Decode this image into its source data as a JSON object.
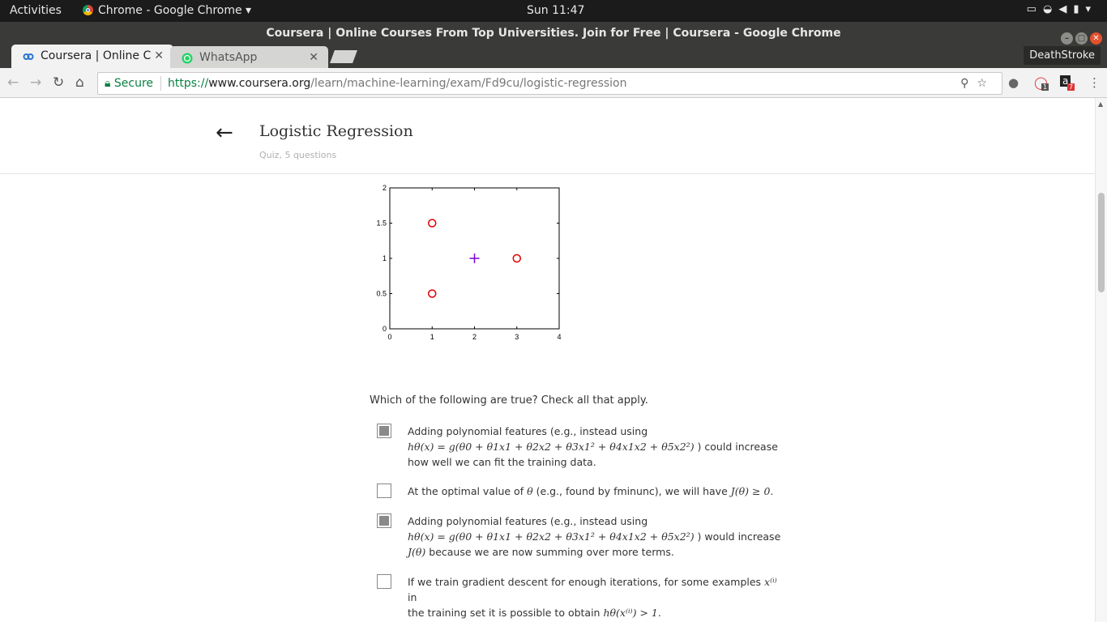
{
  "os": {
    "activities": "Activities",
    "app_name": "Chrome - Google Chrome",
    "clock": "Sun 11:47"
  },
  "window": {
    "title": "Coursera | Online Courses From Top Universities. Join for Free | Coursera - Google Chrome"
  },
  "tabs": [
    {
      "label": "Coursera | Online C",
      "active": true
    },
    {
      "label": "WhatsApp",
      "active": false
    }
  ],
  "profile": "DeathStroke",
  "omnibox": {
    "secure_label": "Secure",
    "url_scheme": "https://",
    "url_host": "www.coursera.org",
    "url_path": "/learn/machine-learning/exam/Fd9cu/logistic-regression"
  },
  "extensions": {
    "badge1": "1",
    "badge2": "7"
  },
  "quiz": {
    "title": "Logistic Regression",
    "subtitle": "Quiz, 5 questions",
    "question": "Which of the following are true? Check all that apply."
  },
  "options": [
    {
      "checked": true,
      "l1": "Adding polynomial features (e.g., instead using",
      "l2_math": "hθ(x) = g(θ0 + θ1x1 + θ2x2 + θ3x1² + θ4x1x2 + θ5x2²)",
      "l2_text": " ) could increase",
      "l3": "how well we can fit the training data."
    },
    {
      "checked": false,
      "l1a": "At the optimal value of ",
      "m1": "θ",
      "l1b": " (e.g., found by fminunc), we will have ",
      "m2": "J(θ) ≥ 0."
    },
    {
      "checked": true,
      "l1": "Adding polynomial features (e.g., instead using",
      "l2_math": "hθ(x) = g(θ0 + θ1x1 + θ2x2 + θ3x1² + θ4x1x2 + θ5x2²)",
      "l2_text": " ) would increase",
      "l3_math": "J(θ)",
      "l3": " because we are now summing over more terms."
    },
    {
      "checked": false,
      "l1a": "If we train gradient descent for enough iterations, for some examples ",
      "m1": "x⁽ⁱ⁾",
      "l1b": " in",
      "l2a": "the training set it is possible to obtain ",
      "m2": "hθ(x⁽ⁱ⁾) > 1."
    }
  ],
  "chart_data": {
    "type": "scatter",
    "xlim": [
      0,
      4
    ],
    "ylim": [
      0,
      2
    ],
    "xticks": [
      "0",
      "1",
      "2",
      "3",
      "4"
    ],
    "yticks": [
      "0",
      "0.5",
      "1",
      "1.5",
      "2"
    ],
    "series": [
      {
        "marker": "circle",
        "color": "#e00000",
        "points": [
          [
            1,
            1.5
          ],
          [
            1,
            0.5
          ],
          [
            3,
            1
          ]
        ]
      },
      {
        "marker": "plus",
        "color": "#7a00d4",
        "points": [
          [
            2,
            1
          ]
        ]
      }
    ]
  }
}
